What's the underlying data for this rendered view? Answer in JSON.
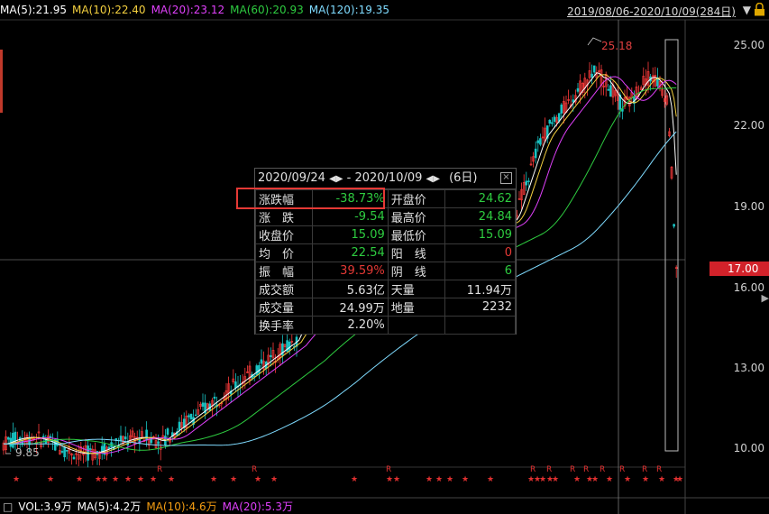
{
  "header": {
    "ma5": {
      "label": "MA(5):21.95",
      "color": "#ffffff"
    },
    "ma10": {
      "label": "MA(10):22.40",
      "color": "#f4d03f"
    },
    "ma20": {
      "label": "MA(20):23.12",
      "color": "#e040fb"
    },
    "ma60": {
      "label": "MA(60):20.93",
      "color": "#2ecc40"
    },
    "ma120": {
      "label": "MA(120):19.35",
      "color": "#7fdbff"
    },
    "range": "2019/08/06-2020/10/09(284日)"
  },
  "axis": {
    "labels": [
      "25.00",
      "22.00",
      "19.00",
      "16.00",
      "13.00",
      "10.00"
    ],
    "current_price": "17.00"
  },
  "annotations": {
    "high": "25.18",
    "low": "9.85",
    "r_marker": "R",
    "star": "★"
  },
  "popup": {
    "date_from": "2020/09/24",
    "date_to": "2020/10/09",
    "sep": "-",
    "days": "(6日)",
    "rows": [
      {
        "l1": "涨跌幅",
        "v1": "-38.73%",
        "l2": "开盘价",
        "v2": "24.62"
      },
      {
        "l1": "涨　跌",
        "v1": "-9.54",
        "l2": "最高价",
        "v2": "24.84"
      },
      {
        "l1": "收盘价",
        "v1": "15.09",
        "l2": "最低价",
        "v2": "15.09"
      },
      {
        "l1": "均　价",
        "v1": "22.54",
        "l2": "阳　线",
        "v2": "0"
      },
      {
        "l1": "振　幅",
        "v1": "39.59%",
        "l2": "阴　线",
        "v2": "6"
      },
      {
        "l1": "成交额",
        "v1": "5.63亿",
        "l2": "天量",
        "v2": "11.94万"
      },
      {
        "l1": "成交量",
        "v1": "24.99万",
        "l2": "地量",
        "v2": "2232"
      },
      {
        "l1": "换手率",
        "v1": "2.20%",
        "l2": "",
        "v2": ""
      }
    ]
  },
  "footer": {
    "vol": "VOL:3.9万",
    "ma5": "MA(5):4.2万",
    "ma10": "MA(10):4.6万",
    "ma20": "MA(20):5.3万"
  },
  "icons": {
    "lock": "lock-icon",
    "dropdown": "dropdown-icon",
    "close": "close-icon",
    "arrows": "left-right-arrow-icon"
  }
}
